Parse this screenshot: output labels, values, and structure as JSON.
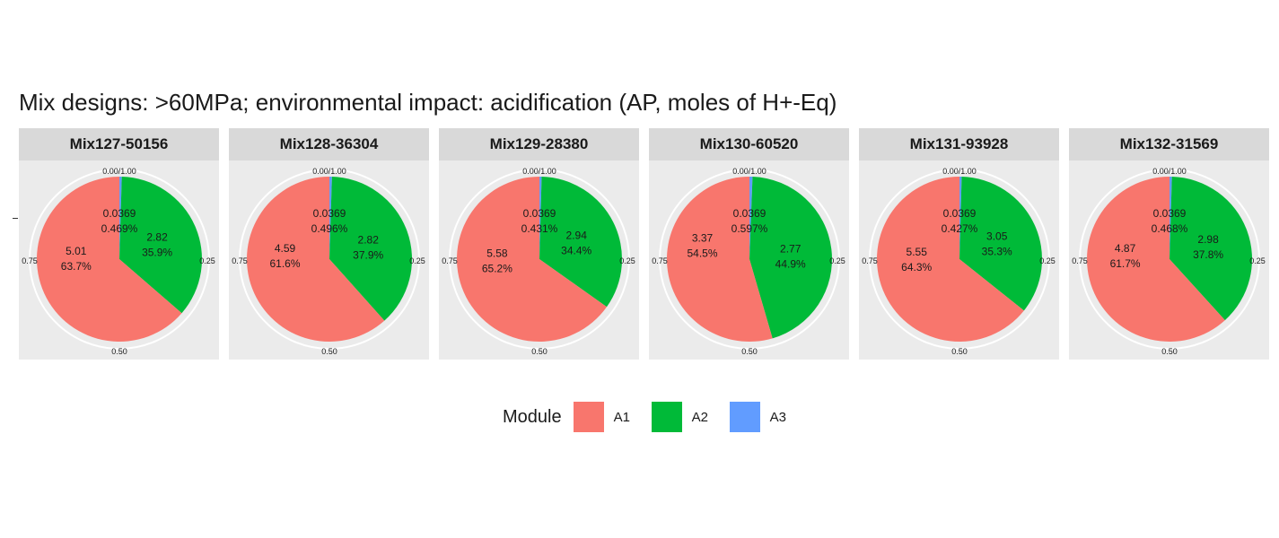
{
  "title": "Mix designs: >60MPa; environmental impact: acidification (AP, moles of H+-Eq)",
  "colors": {
    "A1": "#F8766D",
    "A2": "#00BA38",
    "A3": "#619CFF"
  },
  "chart_data": {
    "type": "pie",
    "title": "Mix designs: >60MPa; environmental impact: acidification (AP, moles of H+-Eq)",
    "series_order": [
      "A1",
      "A2",
      "A3"
    ],
    "radial_tick_labels": [
      "0.00/1.00",
      "0.25",
      "0.50",
      "0.75"
    ],
    "facets": [
      {
        "name": "Mix127-50156",
        "slices": [
          {
            "module": "A1",
            "value": "5.01",
            "percent": "63.7%"
          },
          {
            "module": "A2",
            "value": "2.82",
            "percent": "35.9%"
          },
          {
            "module": "A3",
            "value": "0.0369",
            "percent": "0.469%"
          }
        ]
      },
      {
        "name": "Mix128-36304",
        "slices": [
          {
            "module": "A1",
            "value": "4.59",
            "percent": "61.6%"
          },
          {
            "module": "A2",
            "value": "2.82",
            "percent": "37.9%"
          },
          {
            "module": "A3",
            "value": "0.0369",
            "percent": "0.496%"
          }
        ]
      },
      {
        "name": "Mix129-28380",
        "slices": [
          {
            "module": "A1",
            "value": "5.58",
            "percent": "65.2%"
          },
          {
            "module": "A2",
            "value": "2.94",
            "percent": "34.4%"
          },
          {
            "module": "A3",
            "value": "0.0369",
            "percent": "0.431%"
          }
        ]
      },
      {
        "name": "Mix130-60520",
        "slices": [
          {
            "module": "A1",
            "value": "3.37",
            "percent": "54.5%"
          },
          {
            "module": "A2",
            "value": "2.77",
            "percent": "44.9%"
          },
          {
            "module": "A3",
            "value": "0.0369",
            "percent": "0.597%"
          }
        ]
      },
      {
        "name": "Mix131-93928",
        "slices": [
          {
            "module": "A1",
            "value": "5.55",
            "percent": "64.3%"
          },
          {
            "module": "A2",
            "value": "3.05",
            "percent": "35.3%"
          },
          {
            "module": "A3",
            "value": "0.0369",
            "percent": "0.427%"
          }
        ]
      },
      {
        "name": "Mix132-31569",
        "slices": [
          {
            "module": "A1",
            "value": "4.87",
            "percent": "61.7%"
          },
          {
            "module": "A2",
            "value": "2.98",
            "percent": "37.8%"
          },
          {
            "module": "A3",
            "value": "0.0369",
            "percent": "0.468%"
          }
        ]
      }
    ],
    "legend": {
      "title": "Module",
      "entries": [
        "A1",
        "A2",
        "A3"
      ],
      "placement": "bottom"
    }
  }
}
